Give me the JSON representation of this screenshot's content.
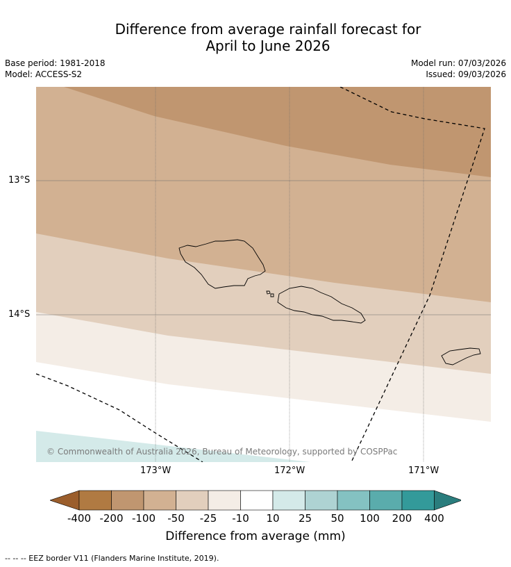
{
  "title_line1": "Difference from average rainfall forecast for",
  "title_line2": "April to June 2026",
  "base_period": "Base period: 1981-2018",
  "model": "Model: ACCESS-S2",
  "model_run": "Model run: 07/03/2026",
  "issued": "Issued: 09/03/2026",
  "copyright": "© Commonwealth of Australia 2026, Bureau of Meteorology, supported by COSPPac",
  "latitudes": [
    "13°S",
    "14°S"
  ],
  "longitudes": [
    "173°W",
    "172°W",
    "171°W"
  ],
  "colorbar": {
    "labels": [
      "-400",
      "-200",
      "-100",
      "-50",
      "-25",
      "-10",
      "10",
      "25",
      "50",
      "100",
      "200",
      "400"
    ],
    "colors": [
      "#9b5e2c",
      "#b07a42",
      "#c09670",
      "#d2b192",
      "#e2cfbd",
      "#f4ede6",
      "#ffffff",
      "#d4eae9",
      "#aed3d3",
      "#84c2c2",
      "#5aacac",
      "#339a9a",
      "#2a7d7d"
    ],
    "title": "Difference from average (mm)"
  },
  "legend_note": "--  --  -- EEZ border V11 (Flanders Marine Institute, 2019)."
}
